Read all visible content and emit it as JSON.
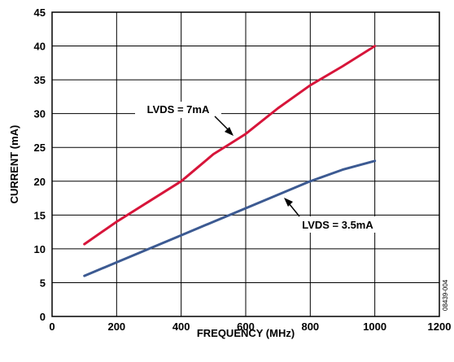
{
  "chart_data": {
    "type": "line",
    "xlabel": "FREQUENCY (MHz)",
    "ylabel": "CURRENT (mA)",
    "xlim": [
      0,
      1200
    ],
    "ylim": [
      0,
      45
    ],
    "xticks": [
      0,
      200,
      400,
      600,
      800,
      1000,
      1200
    ],
    "yticks": [
      0,
      5,
      10,
      15,
      20,
      25,
      30,
      35,
      40,
      45
    ],
    "grid": true,
    "series": [
      {
        "name": "LVDS = 7mA",
        "color": "#d7153a",
        "x": [
          100,
          200,
          300,
          400,
          450,
          500,
          550,
          600,
          700,
          800,
          900,
          1000
        ],
        "y": [
          10.7,
          14.0,
          17.0,
          20.0,
          22.0,
          24.0,
          25.5,
          27.0,
          30.8,
          34.2,
          37.0,
          40.0
        ]
      },
      {
        "name": "LVDS = 3.5mA",
        "color": "#3c5a92",
        "x": [
          100,
          200,
          300,
          400,
          500,
          600,
          700,
          800,
          900,
          1000
        ],
        "y": [
          6.0,
          8.0,
          10.0,
          12.0,
          14.0,
          16.0,
          18.0,
          20.0,
          21.7,
          23.0
        ]
      }
    ],
    "annotations": [
      {
        "text": "LVDS = 7mA",
        "series": 0
      },
      {
        "text": "LVDS = 3.5mA",
        "series": 1
      }
    ],
    "figure_id": "08439-004"
  }
}
